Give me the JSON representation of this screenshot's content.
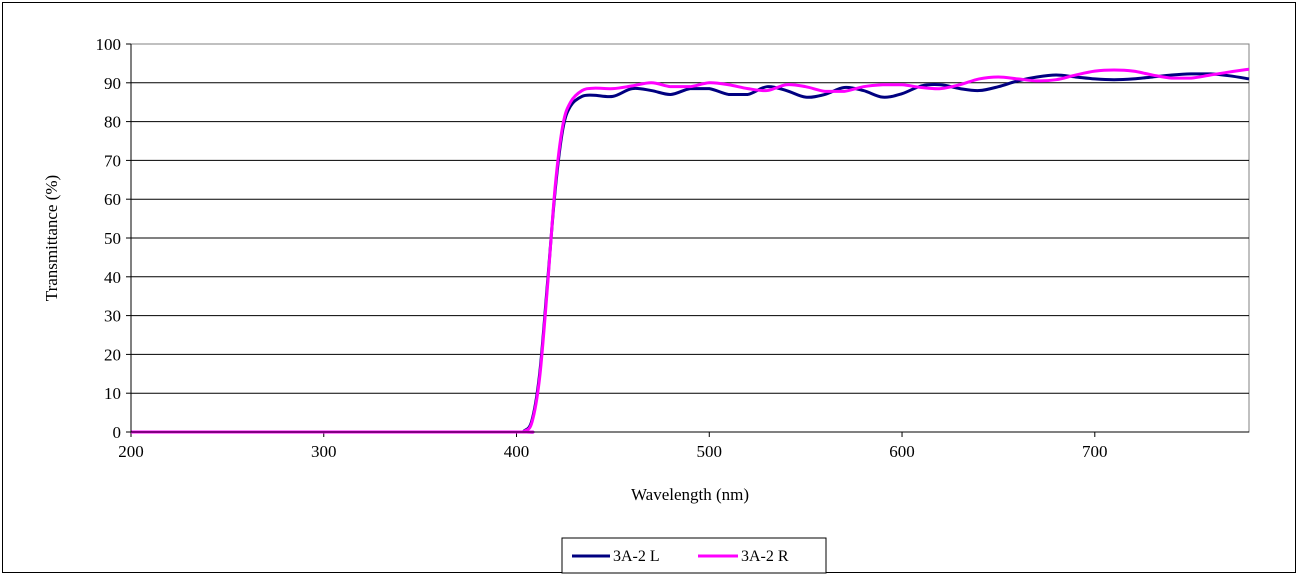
{
  "chart_data": {
    "type": "line",
    "title": "",
    "xlabel": "Wavelength (nm)",
    "ylabel": "Transmittance (%)",
    "xlim": [
      200,
      780
    ],
    "ylim": [
      0,
      100
    ],
    "x_ticks": [
      "200",
      "300",
      "400",
      "500",
      "600",
      "700"
    ],
    "y_ticks": [
      "0",
      "10",
      "20",
      "30",
      "40",
      "50",
      "60",
      "70",
      "80",
      "90",
      "100"
    ],
    "grid": "horizontal",
    "legend_position": "bottom-center",
    "series": [
      {
        "name": "3A-2 L",
        "color": "#000080",
        "points": [
          [
            200,
            0
          ],
          [
            300,
            0
          ],
          [
            400,
            0
          ],
          [
            404,
            0.3
          ],
          [
            408,
            3
          ],
          [
            412,
            15
          ],
          [
            416,
            38
          ],
          [
            420,
            62
          ],
          [
            424,
            78
          ],
          [
            428,
            84
          ],
          [
            434,
            86.5
          ],
          [
            440,
            86.8
          ],
          [
            450,
            86.5
          ],
          [
            460,
            88.5
          ],
          [
            470,
            88
          ],
          [
            480,
            87
          ],
          [
            490,
            88.5
          ],
          [
            500,
            88.5
          ],
          [
            510,
            87
          ],
          [
            520,
            87
          ],
          [
            530,
            89
          ],
          [
            540,
            88
          ],
          [
            550,
            86.3
          ],
          [
            560,
            87
          ],
          [
            570,
            88.8
          ],
          [
            580,
            88
          ],
          [
            590,
            86.3
          ],
          [
            600,
            87.2
          ],
          [
            610,
            89.2
          ],
          [
            620,
            89.5
          ],
          [
            630,
            88.5
          ],
          [
            640,
            88
          ],
          [
            650,
            89
          ],
          [
            660,
            90.5
          ],
          [
            670,
            91.5
          ],
          [
            680,
            92
          ],
          [
            690,
            91.5
          ],
          [
            700,
            91
          ],
          [
            710,
            90.8
          ],
          [
            720,
            91
          ],
          [
            730,
            91.5
          ],
          [
            740,
            92
          ],
          [
            750,
            92.3
          ],
          [
            760,
            92.3
          ],
          [
            770,
            91.8
          ],
          [
            780,
            91
          ]
        ]
      },
      {
        "name": "3A-2 R",
        "color": "#FF00FF",
        "points": [
          [
            200,
            0
          ],
          [
            300,
            0
          ],
          [
            400,
            0
          ],
          [
            404,
            0.2
          ],
          [
            408,
            2.5
          ],
          [
            412,
            14
          ],
          [
            416,
            37
          ],
          [
            420,
            63
          ],
          [
            424,
            79
          ],
          [
            428,
            85
          ],
          [
            434,
            88
          ],
          [
            440,
            88.6
          ],
          [
            450,
            88.5
          ],
          [
            460,
            89.2
          ],
          [
            470,
            90
          ],
          [
            480,
            89
          ],
          [
            490,
            89
          ],
          [
            500,
            90
          ],
          [
            510,
            89.5
          ],
          [
            520,
            88.5
          ],
          [
            530,
            88
          ],
          [
            540,
            89.5
          ],
          [
            550,
            89
          ],
          [
            560,
            87.8
          ],
          [
            570,
            87.8
          ],
          [
            580,
            89
          ],
          [
            590,
            89.5
          ],
          [
            600,
            89.5
          ],
          [
            610,
            88.8
          ],
          [
            620,
            88.5
          ],
          [
            630,
            89.5
          ],
          [
            640,
            91
          ],
          [
            650,
            91.5
          ],
          [
            660,
            91
          ],
          [
            670,
            90.5
          ],
          [
            680,
            90.8
          ],
          [
            690,
            92
          ],
          [
            700,
            93
          ],
          [
            710,
            93.3
          ],
          [
            720,
            93
          ],
          [
            730,
            92
          ],
          [
            740,
            91.2
          ],
          [
            750,
            91.2
          ],
          [
            760,
            92
          ],
          [
            770,
            92.8
          ],
          [
            780,
            93.5
          ]
        ]
      }
    ]
  }
}
